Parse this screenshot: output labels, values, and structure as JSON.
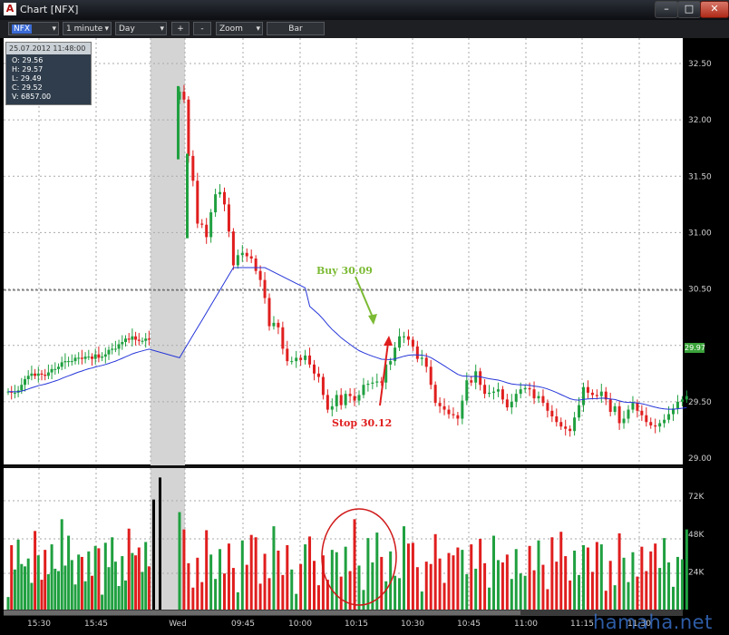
{
  "window": {
    "title": "Chart [NFX]",
    "icon_letter": "A"
  },
  "toolbar": {
    "symbol": "NFX",
    "interval": "1 minute",
    "range": "Day",
    "plus": "+",
    "minus": "-",
    "zoom": "Zoom",
    "chart_type": "Bar"
  },
  "ohlc_box": {
    "date": "25.07.2012 11:48:00",
    "open": "O: 29.56",
    "high": "H: 29.57",
    "low": "L: 29.49",
    "close": "C: 29.52",
    "volume": "V: 6857.00"
  },
  "current_price": "29.97",
  "annotations": {
    "buy": "Buy 30.09",
    "stop": "Stop 30.12"
  },
  "watermark": "hamaha.net",
  "colors": {
    "up": "#20a040",
    "down": "#e01e1e",
    "ma": "#2535d8",
    "buy": "#7cba34",
    "stop": "#e01e1e",
    "circle": "#d01818"
  },
  "chart_data": {
    "type": "candlestick",
    "price_axis": {
      "ticks": [
        "32.50",
        "32.00",
        "31.50",
        "31.00",
        "30.50",
        "29.50",
        "29.00"
      ],
      "range": [
        29.0,
        32.55
      ]
    },
    "volume_axis": {
      "ticks": [
        "72K",
        "48K",
        "24K"
      ],
      "range": [
        0,
        90000
      ]
    },
    "time_axis": {
      "ticks": [
        "15:30",
        "15:45",
        "Wed",
        "09:45",
        "10:00",
        "10:15",
        "10:30",
        "10:45",
        "11:00",
        "11:15",
        "11:30"
      ]
    },
    "reference_line": 30.49,
    "grid": true,
    "close": [
      29.59,
      29.58,
      29.58,
      29.6,
      29.65,
      29.7,
      29.73,
      29.75,
      29.73,
      29.75,
      29.74,
      29.73,
      29.76,
      29.79,
      29.79,
      29.81,
      29.85,
      29.86,
      29.86,
      29.86,
      29.89,
      29.89,
      29.88,
      29.9,
      29.9,
      29.88,
      29.92,
      29.89,
      29.9,
      29.92,
      29.96,
      29.97,
      29.97,
      30.01,
      30.03,
      30.06,
      30.05,
      30.08,
      30.05,
      30.04,
      30.04,
      30.06,
      30.05,
      32.25,
      32.18,
      31.68,
      31.46,
      31.08,
      31.07,
      30.96,
      31.18,
      31.34,
      31.36,
      31.25,
      31.01,
      30.71,
      30.8,
      30.82,
      30.79,
      30.77,
      30.66,
      30.58,
      30.42,
      30.17,
      30.2,
      30.16,
      29.97,
      29.86,
      29.86,
      29.89,
      29.87,
      29.91,
      29.83,
      29.75,
      29.72,
      29.56,
      29.43,
      29.46,
      29.56,
      29.47,
      29.57,
      29.55,
      29.51,
      29.56,
      29.65,
      29.66,
      29.67,
      29.68,
      29.67,
      29.83,
      29.86,
      29.98,
      30.08,
      30.08,
      30.05,
      29.99,
      29.88,
      29.89,
      29.81,
      29.65,
      29.49,
      29.46,
      29.43,
      29.39,
      29.38,
      29.35,
      29.51,
      29.69,
      29.67,
      29.77,
      29.65,
      29.57,
      29.58,
      29.59,
      29.61,
      29.52,
      29.45,
      29.5,
      29.57,
      29.61,
      29.62,
      29.61,
      29.53,
      29.55,
      29.49,
      29.42,
      29.37,
      29.32,
      29.28,
      29.26,
      29.24,
      29.36,
      29.47,
      29.63,
      29.58,
      29.56,
      29.55,
      29.59,
      29.52,
      29.41,
      29.46,
      29.31,
      29.35,
      29.43,
      29.49,
      29.42,
      29.38,
      29.32,
      29.29,
      29.28,
      29.31,
      29.34,
      29.39,
      29.44,
      29.5,
      29.52,
      29.55
    ]
  }
}
